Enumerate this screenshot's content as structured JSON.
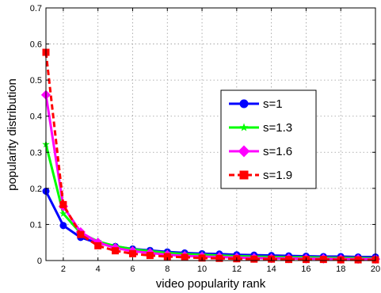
{
  "chart_data": {
    "type": "line",
    "title": "",
    "xlabel": "video popularity rank",
    "ylabel": "popularity distribution",
    "xlim": [
      1,
      20
    ],
    "ylim": [
      0,
      0.7
    ],
    "x_ticks": [
      2,
      4,
      6,
      8,
      10,
      12,
      14,
      16,
      18,
      20
    ],
    "y_ticks": [
      0,
      0.1,
      0.2,
      0.3,
      0.4,
      0.5,
      0.6,
      0.7
    ],
    "x_tick_labels": [
      "2",
      "4",
      "6",
      "8",
      "10",
      "12",
      "14",
      "16",
      "18",
      "20"
    ],
    "y_tick_labels": [
      "0",
      "0.1",
      "0.2",
      "0.3",
      "0.4",
      "0.5",
      "0.6",
      "0.7"
    ],
    "grid": true,
    "legend_position": "right",
    "x": [
      1,
      2,
      3,
      4,
      5,
      6,
      7,
      8,
      9,
      10,
      11,
      12,
      13,
      14,
      15,
      16,
      17,
      18,
      19,
      20
    ],
    "series": [
      {
        "name": "s=1",
        "color": "#0000ff",
        "marker": "circle",
        "dashed": false,
        "values": [
          0.192,
          0.097,
          0.064,
          0.048,
          0.039,
          0.032,
          0.028,
          0.024,
          0.021,
          0.019,
          0.018,
          0.016,
          0.015,
          0.014,
          0.013,
          0.012,
          0.011,
          0.011,
          0.01,
          0.01
        ]
      },
      {
        "name": "s=1.3",
        "color": "#00ff00",
        "marker": "star",
        "dashed": false,
        "values": [
          0.322,
          0.13,
          0.076,
          0.053,
          0.04,
          0.031,
          0.026,
          0.021,
          0.018,
          0.016,
          0.014,
          0.012,
          0.011,
          0.01,
          0.009,
          0.009,
          0.008,
          0.007,
          0.007,
          0.006
        ]
      },
      {
        "name": "s=1.6",
        "color": "#ff00ff",
        "marker": "diamond",
        "dashed": false,
        "values": [
          0.459,
          0.15,
          0.079,
          0.05,
          0.035,
          0.026,
          0.021,
          0.016,
          0.013,
          0.011,
          0.01,
          0.008,
          0.007,
          0.006,
          0.006,
          0.005,
          0.005,
          0.004,
          0.004,
          0.004
        ]
      },
      {
        "name": "s=1.9",
        "color": "#ff0000",
        "marker": "square",
        "dashed": true,
        "values": [
          0.577,
          0.155,
          0.072,
          0.041,
          0.027,
          0.019,
          0.014,
          0.011,
          0.009,
          0.007,
          0.006,
          0.005,
          0.004,
          0.004,
          0.003,
          0.003,
          0.003,
          0.002,
          0.002,
          0.002
        ]
      }
    ]
  }
}
